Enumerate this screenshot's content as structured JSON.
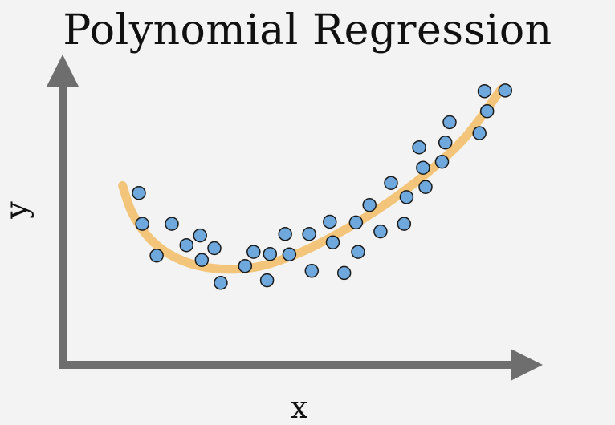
{
  "title": "Polynomial Regression",
  "axes": {
    "x_label": "x",
    "y_label": "y"
  },
  "colors": {
    "axis": "#6e6e6e",
    "curve": "#f3c57a",
    "point_fill": "#6fa8dc",
    "point_stroke": "#1a1a1a"
  },
  "chart_data": {
    "type": "scatter",
    "x_range": [
      0,
      100
    ],
    "y_range": [
      0,
      100
    ],
    "points": [
      {
        "x": 10.1,
        "y": 53.4
      },
      {
        "x": 10.9,
        "y": 40.1
      },
      {
        "x": 14.3,
        "y": 26.4
      },
      {
        "x": 17.9,
        "y": 40.1
      },
      {
        "x": 21.4,
        "y": 30.9
      },
      {
        "x": 24.6,
        "y": 35.1
      },
      {
        "x": 25.0,
        "y": 24.5
      },
      {
        "x": 28.0,
        "y": 29.6
      },
      {
        "x": 29.5,
        "y": 14.6
      },
      {
        "x": 35.3,
        "y": 21.9
      },
      {
        "x": 37.3,
        "y": 28.0
      },
      {
        "x": 40.5,
        "y": 15.7
      },
      {
        "x": 41.2,
        "y": 27.1
      },
      {
        "x": 44.8,
        "y": 35.7
      },
      {
        "x": 45.8,
        "y": 26.9
      },
      {
        "x": 50.5,
        "y": 35.7
      },
      {
        "x": 51.1,
        "y": 19.8
      },
      {
        "x": 55.4,
        "y": 41.0
      },
      {
        "x": 56.1,
        "y": 32.1
      },
      {
        "x": 58.8,
        "y": 18.9
      },
      {
        "x": 61.6,
        "y": 40.7
      },
      {
        "x": 62.1,
        "y": 28.0
      },
      {
        "x": 64.8,
        "y": 48.2
      },
      {
        "x": 67.4,
        "y": 36.8
      },
      {
        "x": 69.9,
        "y": 57.7
      },
      {
        "x": 73.0,
        "y": 40.1
      },
      {
        "x": 73.6,
        "y": 51.6
      },
      {
        "x": 76.6,
        "y": 73.1
      },
      {
        "x": 78.1,
        "y": 56.0
      },
      {
        "x": 77.5,
        "y": 64.3
      },
      {
        "x": 82.0,
        "y": 66.9
      },
      {
        "x": 82.8,
        "y": 75.2
      },
      {
        "x": 83.8,
        "y": 83.9
      },
      {
        "x": 90.9,
        "y": 79.2
      },
      {
        "x": 92.1,
        "y": 97.3
      },
      {
        "x": 92.7,
        "y": 88.7
      },
      {
        "x": 97.0,
        "y": 97.6
      }
    ],
    "curve": {
      "type": "line",
      "x": [
        6.2,
        8.5,
        12.8,
        18.7,
        26.8,
        36.7,
        45.8,
        54.9,
        66.2,
        77.1,
        87.4,
        96.1
      ],
      "y": [
        56.6,
        44.8,
        33.5,
        25.6,
        21.1,
        21.1,
        25.8,
        33.5,
        45.6,
        60.0,
        77.2,
        98.3
      ]
    }
  }
}
